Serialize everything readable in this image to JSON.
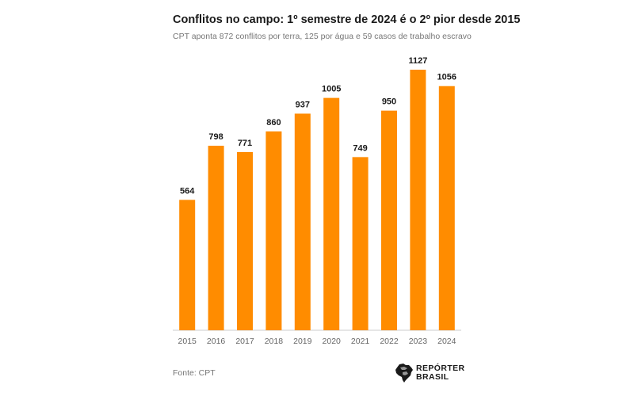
{
  "chart_data": {
    "type": "bar",
    "title": "Conflitos no campo: 1º semestre de 2024 é o 2º pior desde 2015",
    "subtitle": "CPT aponta  872 conflitos por terra, 125 por água e 59 casos de trabalho escravo",
    "categories": [
      "2015",
      "2016",
      "2017",
      "2018",
      "2019",
      "2020",
      "2021",
      "2022",
      "2023",
      "2024"
    ],
    "values": [
      564,
      798,
      771,
      860,
      937,
      1005,
      749,
      950,
      1127,
      1056
    ],
    "data_labels": [
      "564",
      "798",
      "771",
      "860",
      "937",
      "1005",
      "749",
      "950",
      "1127",
      "1056"
    ],
    "xlabel": "",
    "ylabel": "",
    "ylim": [
      0,
      1127
    ],
    "grid": false,
    "legend": "none",
    "colors": {
      "bar": "#ff8c00",
      "axis": "#cccccc",
      "label": "#1a1a1a",
      "tick": "#666666"
    }
  },
  "footer": {
    "source": "Fonte: CPT",
    "brand_line1": "REPÓRTER",
    "brand_line2": "BRASIL"
  }
}
